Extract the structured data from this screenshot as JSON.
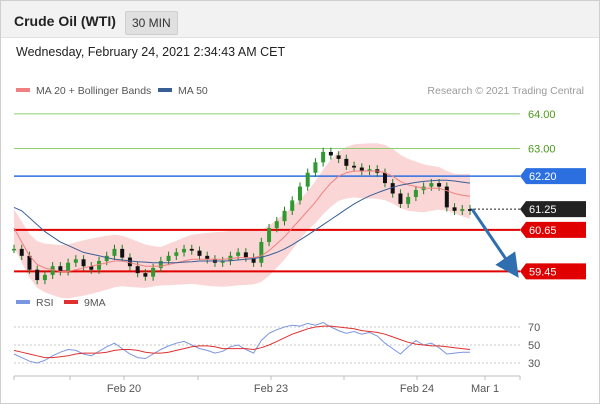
{
  "header": {
    "title": "Crude Oil (WTI)",
    "timeframe": "30 MIN"
  },
  "timestamp": "Wednesday, February 24, 2021 2:34:43 AM CET",
  "legend": {
    "ma_boll": "MA 20 + Bollinger Bands",
    "ma50": "MA 50",
    "credit": "Research © 2021 Trading Central",
    "rsi": "RSI",
    "ma9": "9MA"
  },
  "colors": {
    "ma_boll": "#f08080",
    "band_fill": "#f8c8c8",
    "ma50": "#3a5f96",
    "resistance_line": "#8fcf6f",
    "resistance_text": "#4a9a1a",
    "pivot": "#2c6fe0",
    "support": "#e00000",
    "last_price": "#222222",
    "candle": "#1e7d1e",
    "arrow": "#2f6fb0",
    "rsi": "#7b96e0",
    "rsi_ma": "#e03030"
  },
  "chart_data": [
    {
      "type": "line",
      "title": "",
      "xlabel": "",
      "ylabel": "",
      "ylim": [
        59.0,
        64.4
      ],
      "x_ticks": [
        "Feb 20",
        "Feb 23",
        "Feb 24",
        "Mar 1"
      ],
      "levels": [
        {
          "value": 64.0,
          "label": "64.00",
          "kind": "resistance"
        },
        {
          "value": 63.0,
          "label": "63.00",
          "kind": "resistance"
        },
        {
          "value": 62.2,
          "label": "62.20",
          "kind": "pivot"
        },
        {
          "value": 61.25,
          "label": "61.25",
          "kind": "last"
        },
        {
          "value": 60.65,
          "label": "60.65",
          "kind": "support"
        },
        {
          "value": 59.45,
          "label": "59.45",
          "kind": "support"
        }
      ],
      "series": [
        {
          "values": [
            60.1,
            59.9,
            59.5,
            59.2,
            59.35,
            59.6,
            59.45,
            59.7,
            59.8,
            59.6,
            59.5,
            59.75,
            59.9,
            60.1,
            59.85,
            59.6,
            59.4,
            59.3,
            59.55,
            59.75,
            59.9,
            60.0,
            60.1,
            60.05,
            59.9,
            59.8,
            59.7,
            59.75,
            59.9,
            60.0,
            59.85,
            59.7,
            60.3,
            60.7,
            60.9,
            61.2,
            61.5,
            61.9,
            62.3,
            62.6,
            62.9,
            62.8,
            62.7,
            62.5,
            62.45,
            62.35,
            62.4,
            62.3,
            62.0,
            61.7,
            61.4,
            61.6,
            61.8,
            61.9,
            62.0,
            61.9,
            61.3,
            61.2,
            61.25,
            61.2
          ]
        },
        {
          "values": [
            60.7,
            60.3,
            59.9,
            59.65,
            59.55,
            59.5,
            59.45,
            59.45,
            59.5,
            59.55,
            59.6,
            59.65,
            59.7,
            59.75,
            59.75,
            59.7,
            59.65,
            59.6,
            59.6,
            59.6,
            59.65,
            59.7,
            59.75,
            59.8,
            59.8,
            59.8,
            59.8,
            59.8,
            59.82,
            59.85,
            59.85,
            59.85,
            59.9,
            60.05,
            60.25,
            60.45,
            60.7,
            60.95,
            61.2,
            61.45,
            61.75,
            62.0,
            62.2,
            62.3,
            62.35,
            62.35,
            62.35,
            62.35,
            62.3,
            62.2,
            62.05,
            61.95,
            61.9,
            61.85,
            61.85,
            61.85,
            61.78,
            61.7,
            61.65,
            61.62
          ]
        },
        {
          "values": [
            61.3,
            61.2,
            61.0,
            60.8,
            60.6,
            60.45,
            60.3,
            60.2,
            60.1,
            60.0,
            59.95,
            59.9,
            59.85,
            59.8,
            59.78,
            59.75,
            59.73,
            59.72,
            59.7,
            59.7,
            59.7,
            59.7,
            59.72,
            59.73,
            59.75,
            59.75,
            59.75,
            59.75,
            59.76,
            59.78,
            59.8,
            59.82,
            59.86,
            59.92,
            60.0,
            60.1,
            60.22,
            60.36,
            60.5,
            60.65,
            60.8,
            60.95,
            61.1,
            61.25,
            61.4,
            61.52,
            61.63,
            61.72,
            61.8,
            61.88,
            61.94,
            61.98,
            62.02,
            62.05,
            62.07,
            62.08,
            62.08,
            62.06,
            62.03,
            62.0
          ]
        }
      ]
    },
    {
      "type": "line",
      "title": "",
      "ylim": [
        20,
        80
      ],
      "y_ticks": [
        70,
        50,
        30
      ],
      "series": [
        {
          "values": [
            40,
            36,
            32,
            30,
            33,
            38,
            42,
            45,
            44,
            40,
            38,
            43,
            48,
            52,
            46,
            40,
            36,
            35,
            40,
            45,
            49,
            52,
            54,
            50,
            46,
            44,
            41,
            43,
            48,
            50,
            45,
            41,
            55,
            63,
            67,
            70,
            72,
            71,
            74,
            72,
            75,
            70,
            66,
            63,
            65,
            62,
            64,
            60,
            52,
            46,
            40,
            48,
            55,
            50,
            52,
            47,
            40,
            41,
            42,
            42
          ]
        },
        {
          "values": [
            44,
            42,
            40,
            38,
            36,
            36,
            37,
            38,
            40,
            41,
            41,
            41,
            42,
            44,
            45,
            45,
            44,
            42,
            41,
            41,
            42,
            44,
            46,
            48,
            49,
            49,
            48,
            46,
            46,
            46,
            46,
            45,
            47,
            50,
            54,
            58,
            62,
            65,
            68,
            70,
            71,
            71,
            70,
            69,
            68,
            66,
            65,
            64,
            62,
            59,
            56,
            53,
            51,
            50,
            49,
            49,
            48,
            47,
            46,
            45
          ]
        }
      ]
    }
  ]
}
